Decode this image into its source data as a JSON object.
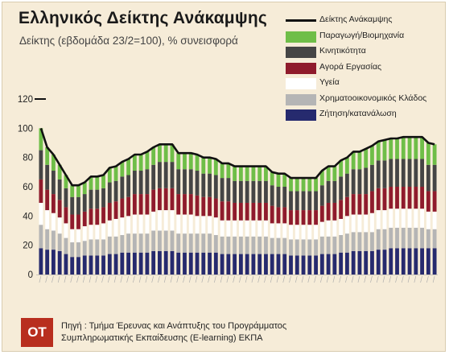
{
  "title": "Ελληνικός Δείκτης Ανάκαμψης",
  "subtitle": "Δείκτης (εβδομάδα 23/2=100), % συνεισφορά",
  "legend": [
    {
      "label": "Δείκτης Ανάκαμψης",
      "kind": "line",
      "color": "#111111"
    },
    {
      "label": "Παραγωγή/Βιομηχανία",
      "kind": "box",
      "color": "#6fbe48"
    },
    {
      "label": "Κινητικότητα",
      "kind": "box",
      "color": "#454545"
    },
    {
      "label": "Αγορά Εργασίας",
      "kind": "box",
      "color": "#8f1b2c"
    },
    {
      "label": "Υγεία",
      "kind": "box",
      "color": "#ffffff"
    },
    {
      "label": "Χρηματοοικονομικός Κλάδος",
      "kind": "box",
      "color": "#b5b5b5"
    },
    {
      "label": "Ζήτηση/κατανάλωση",
      "kind": "box",
      "color": "#262a6e"
    }
  ],
  "footer": {
    "logo": "OT",
    "source_line1": "Πηγή : Τμήμα Έρευνας και Ανάπτυξης του Προγράμματος",
    "source_line2": "Συμπληρωματικής Εκπαίδευσης (E-learning) ΕΚΠΑ"
  },
  "chart_data": {
    "type": "bar",
    "stacked": true,
    "title": "Ελληνικός Δείκτης Ανάκαμψης",
    "subtitle": "Δείκτης (εβδομάδα 23/2=100), % συνεισφορά",
    "ylim": [
      0,
      120
    ],
    "yticks": [
      0,
      20,
      40,
      60,
      80,
      100,
      120
    ],
    "grid": false,
    "legend_position": "top-right",
    "x_labels_legible": false,
    "n_periods": 64,
    "series": [
      {
        "name": "Ζήτηση/κατανάλωση",
        "color": "#262a6e",
        "values": [
          18,
          17,
          17,
          16,
          14,
          12,
          12,
          13,
          13,
          13,
          13,
          14,
          14,
          15,
          15,
          15,
          15,
          15,
          16,
          16,
          16,
          16,
          15,
          15,
          15,
          15,
          15,
          15,
          15,
          14,
          14,
          14,
          14,
          14,
          14,
          14,
          14,
          14,
          14,
          14,
          13,
          13,
          13,
          13,
          13,
          14,
          14,
          14,
          15,
          15,
          16,
          16,
          16,
          16,
          17,
          17,
          18,
          18,
          18,
          18,
          18,
          18,
          18,
          18
        ]
      },
      {
        "name": "Χρηματοοικονομικός Κλάδος",
        "color": "#b5b5b5",
        "values": [
          16,
          14,
          13,
          12,
          11,
          10,
          10,
          10,
          11,
          11,
          11,
          12,
          12,
          12,
          13,
          13,
          13,
          13,
          14,
          14,
          14,
          14,
          13,
          13,
          13,
          13,
          13,
          13,
          12,
          12,
          12,
          12,
          12,
          12,
          12,
          12,
          12,
          11,
          11,
          11,
          11,
          11,
          11,
          11,
          11,
          12,
          12,
          12,
          12,
          13,
          13,
          13,
          13,
          13,
          14,
          14,
          14,
          14,
          14,
          14,
          14,
          14,
          13,
          13
        ]
      },
      {
        "name": "Υγεία",
        "color": "#ffffff",
        "values": [
          15,
          13,
          12,
          11,
          10,
          9,
          9,
          10,
          10,
          10,
          11,
          11,
          12,
          12,
          12,
          13,
          13,
          13,
          13,
          14,
          14,
          14,
          13,
          13,
          13,
          12,
          12,
          12,
          12,
          11,
          11,
          11,
          11,
          11,
          11,
          11,
          11,
          10,
          10,
          10,
          10,
          10,
          10,
          10,
          10,
          10,
          11,
          11,
          11,
          12,
          12,
          12,
          12,
          13,
          13,
          13,
          13,
          13,
          13,
          13,
          13,
          13,
          12,
          12
        ]
      },
      {
        "name": "Αγορά Εργασίας",
        "color": "#8f1b2c",
        "values": [
          16,
          14,
          13,
          12,
          11,
          10,
          10,
          10,
          11,
          11,
          11,
          12,
          12,
          13,
          13,
          14,
          14,
          14,
          15,
          15,
          15,
          15,
          14,
          14,
          14,
          14,
          13,
          13,
          13,
          13,
          13,
          12,
          12,
          12,
          12,
          12,
          12,
          12,
          11,
          11,
          10,
          10,
          10,
          10,
          10,
          11,
          12,
          12,
          13,
          13,
          14,
          14,
          14,
          15,
          15,
          15,
          15,
          15,
          15,
          15,
          15,
          15,
          14,
          14
        ]
      },
      {
        "name": "Κινητικότητα",
        "color": "#454545",
        "values": [
          20,
          17,
          16,
          14,
          13,
          12,
          12,
          12,
          13,
          13,
          13,
          14,
          14,
          15,
          15,
          16,
          16,
          17,
          17,
          18,
          18,
          18,
          17,
          17,
          17,
          17,
          16,
          16,
          16,
          16,
          16,
          15,
          15,
          15,
          15,
          15,
          15,
          14,
          14,
          14,
          13,
          13,
          13,
          13,
          13,
          14,
          15,
          15,
          16,
          16,
          17,
          17,
          18,
          18,
          19,
          19,
          19,
          19,
          19,
          19,
          19,
          19,
          18,
          18
        ]
      },
      {
        "name": "Παραγωγή/Βιομηχανία",
        "color": "#6fbe48",
        "values": [
          15,
          12,
          11,
          10,
          9,
          8,
          8,
          8,
          9,
          9,
          9,
          10,
          10,
          10,
          11,
          11,
          11,
          12,
          12,
          12,
          12,
          12,
          11,
          11,
          11,
          11,
          11,
          11,
          11,
          10,
          10,
          10,
          10,
          10,
          10,
          10,
          10,
          9,
          9,
          9,
          9,
          9,
          9,
          9,
          9,
          10,
          10,
          10,
          11,
          11,
          12,
          12,
          13,
          13,
          13,
          14,
          14,
          14,
          15,
          15,
          15,
          15,
          15,
          14
        ]
      }
    ],
    "line": {
      "name": "Δείκτης Ανάκαμψης",
      "color": "#111111",
      "values": [
        100,
        87,
        82,
        75,
        68,
        61,
        61,
        63,
        67,
        67,
        68,
        73,
        74,
        77,
        79,
        82,
        82,
        84,
        87,
        89,
        89,
        89,
        83,
        83,
        83,
        82,
        80,
        80,
        79,
        76,
        76,
        74,
        74,
        74,
        74,
        74,
        74,
        70,
        69,
        69,
        66,
        66,
        66,
        66,
        66,
        71,
        74,
        74,
        78,
        80,
        84,
        84,
        86,
        88,
        91,
        92,
        93,
        93,
        94,
        94,
        94,
        94,
        90,
        89
      ]
    }
  }
}
